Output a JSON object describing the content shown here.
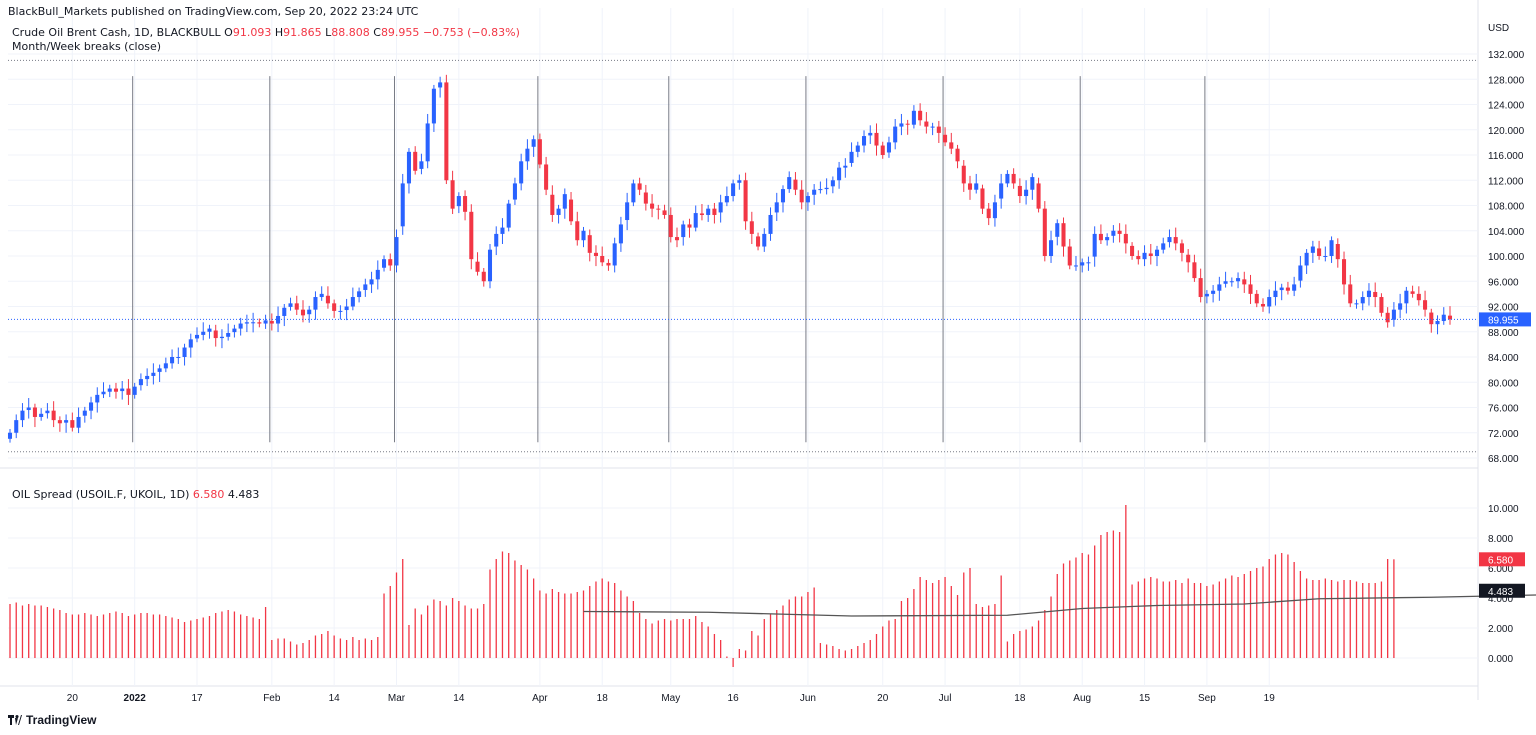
{
  "attribution": "BlackBull_Markets published on TradingView.com, Sep 20, 2022 23:24 UTC",
  "main_legend": {
    "symbol": "Crude Oil Brent Cash, 1D, BLACKBULL",
    "o_label": "O",
    "o_value": "91.093",
    "h_label": "H",
    "h_value": "91.865",
    "l_label": "L",
    "l_value": "88.808",
    "c_label": "C",
    "c_value": "89.955",
    "change": "−0.753 (−0.83%)",
    "indicator": "Month/Week breaks (close)"
  },
  "sub_legend": {
    "name": "OIL Spread (USOIL.F, UKOIL, 1D)",
    "value1": "6.580",
    "value2": "4.483"
  },
  "footer": {
    "brand": "TradingView"
  },
  "colors": {
    "up": "#2962ff",
    "down": "#f23645",
    "grid": "#f0f3fa",
    "axis_text": "#131722",
    "break_line": "#787b86",
    "ma_line": "#555555"
  },
  "chart_data": [
    {
      "type": "candlestick",
      "currency": "USD",
      "ylim": [
        68,
        132
      ],
      "y_ticks": [
        "132.000",
        "128.000",
        "124.000",
        "120.000",
        "116.000",
        "112.000",
        "108.000",
        "104.000",
        "100.000",
        "96.000",
        "92.000",
        "88.000",
        "84.000",
        "80.000",
        "76.000",
        "72.000",
        "68.000"
      ],
      "last_price_label": "89.955",
      "last_price": 89.955,
      "x_tick_labels": [
        "20",
        "2022",
        "17",
        "Feb",
        "14",
        "Mar",
        "14",
        "Apr",
        "18",
        "May",
        "16",
        "Jun",
        "20",
        "Jul",
        "18",
        "Aug",
        "15",
        "Sep",
        "19"
      ],
      "x_tick_bar_index": [
        10,
        20,
        30,
        42,
        52,
        62,
        72,
        85,
        95,
        106,
        116,
        128,
        140,
        150,
        162,
        172,
        182,
        192,
        202
      ],
      "month_breaks_bar_index": [
        20,
        42,
        62,
        85,
        106,
        128,
        150,
        172,
        192
      ],
      "closes": [
        72,
        74,
        75.5,
        76,
        74.5,
        75,
        75.5,
        74,
        73.5,
        74,
        72.8,
        74.5,
        75.5,
        76.8,
        78,
        78.5,
        79,
        78.5,
        79,
        78,
        79.3,
        80.5,
        81,
        81.5,
        82.2,
        83,
        84,
        84,
        85.5,
        86.8,
        87.5,
        88,
        88.5,
        87,
        87.2,
        87.8,
        88.5,
        89.3,
        89.5,
        89.5,
        89.3,
        89.8,
        89.3,
        90.5,
        91.8,
        92.5,
        91.5,
        90.6,
        91.5,
        93.5,
        94,
        92.5,
        91.3,
        91.3,
        92,
        93.5,
        94.4,
        95.5,
        96.3,
        97.8,
        99.5,
        98.5,
        103,
        111.5,
        116.5,
        113.5,
        115,
        121,
        126.5,
        127.5,
        112,
        107.5,
        109.5,
        107,
        99.5,
        97.5,
        96,
        101,
        103.5,
        104.5,
        108.3,
        111.5,
        115,
        117,
        118.5,
        114.5,
        110.5,
        106.5,
        107.5,
        109.8,
        105.5,
        102.5,
        104,
        100.5,
        100,
        99,
        98.5,
        102,
        105,
        108.5,
        111.5,
        110.5,
        108.3,
        107.5,
        107.4,
        106.5,
        103,
        102.5,
        105,
        104.5,
        106.8,
        106.5,
        107.5,
        106.5,
        108.5,
        109.5,
        111.5,
        112,
        105.5,
        103.5,
        101.5,
        103.5,
        106.5,
        108.5,
        110.6,
        112.5,
        110.5,
        108.5,
        109.5,
        110.5,
        110.6,
        110.8,
        112,
        114,
        114.3,
        116.5,
        117.5,
        119,
        119.5,
        117.5,
        116,
        118,
        120.5,
        121,
        120.8,
        123,
        121.5,
        120.5,
        120.5,
        119.5,
        118,
        117,
        115,
        111.5,
        110.5,
        111.5,
        107.5,
        106,
        108.5,
        111.5,
        113,
        111.5,
        109.5,
        110.5,
        112.5,
        107.5,
        100,
        102.5,
        105.2,
        101.5,
        98.5,
        98.5,
        99,
        99,
        103.5,
        102.5,
        103,
        104,
        103.5,
        102,
        100,
        99.5,
        100.5,
        100,
        101,
        102,
        103,
        102,
        100.5,
        99,
        96.5,
        93.5,
        94,
        94.5,
        95.5,
        96,
        96,
        96.5,
        95.5,
        94,
        92.5,
        92,
        93.5,
        94.5,
        95,
        94.5,
        95.5,
        98.5,
        100.5,
        101.5,
        100,
        100,
        102.5,
        99.5,
        95.5,
        92.5,
        92.5,
        93.5,
        94.5,
        93.5,
        91,
        89.5,
        91.5,
        92.5,
        94.5,
        94,
        93,
        91.5,
        89.2,
        89.7,
        90.7,
        89.955
      ],
      "sub_chart": {
        "name": "OIL Spread (USOIL.F, UKOIL, 1D)",
        "type": "histogram+line",
        "ylim": [
          -1,
          11
        ],
        "y_ticks": [
          "10.000",
          "8.000",
          "6.000",
          "4.000",
          "2.000",
          "0.000"
        ],
        "last_value_label": "6.580",
        "ma_value_label": "4.483",
        "values": [
          3.6,
          3.7,
          3.5,
          3.6,
          3.5,
          3.5,
          3.4,
          3.3,
          3.2,
          3.0,
          2.9,
          2.9,
          3.0,
          2.9,
          2.8,
          2.9,
          3.0,
          3.1,
          3.0,
          2.8,
          2.9,
          3.0,
          3.0,
          2.9,
          2.9,
          2.8,
          2.7,
          2.6,
          2.4,
          2.5,
          2.6,
          2.7,
          2.8,
          3.0,
          3.1,
          3.2,
          3.1,
          2.9,
          2.8,
          2.7,
          2.6,
          3.4,
          1.2,
          1.3,
          1.3,
          1.1,
          0.9,
          1.0,
          1.2,
          1.5,
          1.6,
          1.8,
          1.5,
          1.3,
          1.2,
          1.4,
          1.2,
          1.3,
          1.2,
          1.4,
          4.3,
          4.8,
          5.7,
          6.6,
          2.2,
          3.3,
          2.9,
          3.5,
          3.9,
          3.8,
          3.5,
          4.0,
          3.8,
          3.5,
          3.3,
          3.3,
          3.6,
          5.9,
          6.6,
          7.1,
          7.0,
          6.5,
          6.2,
          5.9,
          5.3,
          4.5,
          4.3,
          4.6,
          4.4,
          4.3,
          4.3,
          4.4,
          4.5,
          4.8,
          5.1,
          5.3,
          5.1,
          5.0,
          4.5,
          4.1,
          3.8,
          3.0,
          2.6,
          2.3,
          2.5,
          2.6,
          2.5,
          2.6,
          2.6,
          2.6,
          2.8,
          2.4,
          2.1,
          1.6,
          1.2,
          0.1,
          -0.6,
          0.6,
          0.5,
          1.8,
          1.5,
          2.6,
          2.9,
          3.2,
          3.5,
          3.9,
          4.1,
          4.1,
          4.4,
          4.7,
          1.0,
          0.9,
          0.8,
          0.6,
          0.5,
          0.6,
          0.8,
          1.0,
          1.2,
          1.6,
          2.1,
          2.5,
          2.6,
          3.8,
          4.0,
          4.6,
          5.4,
          5.2,
          5.0,
          5.2,
          5.4,
          4.8,
          4.2,
          5.7,
          6.0,
          3.6,
          3.4,
          3.5,
          3.6,
          5.5,
          1.1,
          1.6,
          1.8,
          1.9,
          2.1,
          2.5,
          3.2,
          4.1,
          5.6,
          6.3,
          6.5,
          6.7,
          7.0,
          6.9,
          7.5,
          8.2,
          8.4,
          8.5,
          8.4,
          10.2,
          4.9,
          5.1,
          5.3,
          5.4,
          5.3,
          5.1,
          5.1,
          5.2,
          5.0,
          5.3,
          5.0,
          5.0,
          4.8,
          4.9,
          5.1,
          5.3,
          5.5,
          5.4,
          5.6,
          5.8,
          6.0,
          6.1,
          6.6,
          6.9,
          7.0,
          6.9,
          6.4,
          5.8,
          5.3,
          5.2,
          5.2,
          5.3,
          5.2,
          5.1,
          5.2,
          5.2,
          5.1,
          5.0,
          5.0,
          5.0,
          5.1,
          6.6,
          6.58
        ],
        "ma_line": {
          "start_index": 92,
          "start_value": 3.1,
          "points": [
            [
              92,
              3.1
            ],
            [
              112,
              3.05
            ],
            [
              135,
              2.8
            ],
            [
              160,
              2.85
            ],
            [
              172,
              3.3
            ],
            [
              184,
              3.5
            ],
            [
              198,
              3.6
            ],
            [
              210,
              3.95
            ],
            [
              228,
              4.05
            ],
            [
              245,
              4.2
            ],
            [
              258,
              4.483
            ]
          ]
        }
      }
    }
  ]
}
